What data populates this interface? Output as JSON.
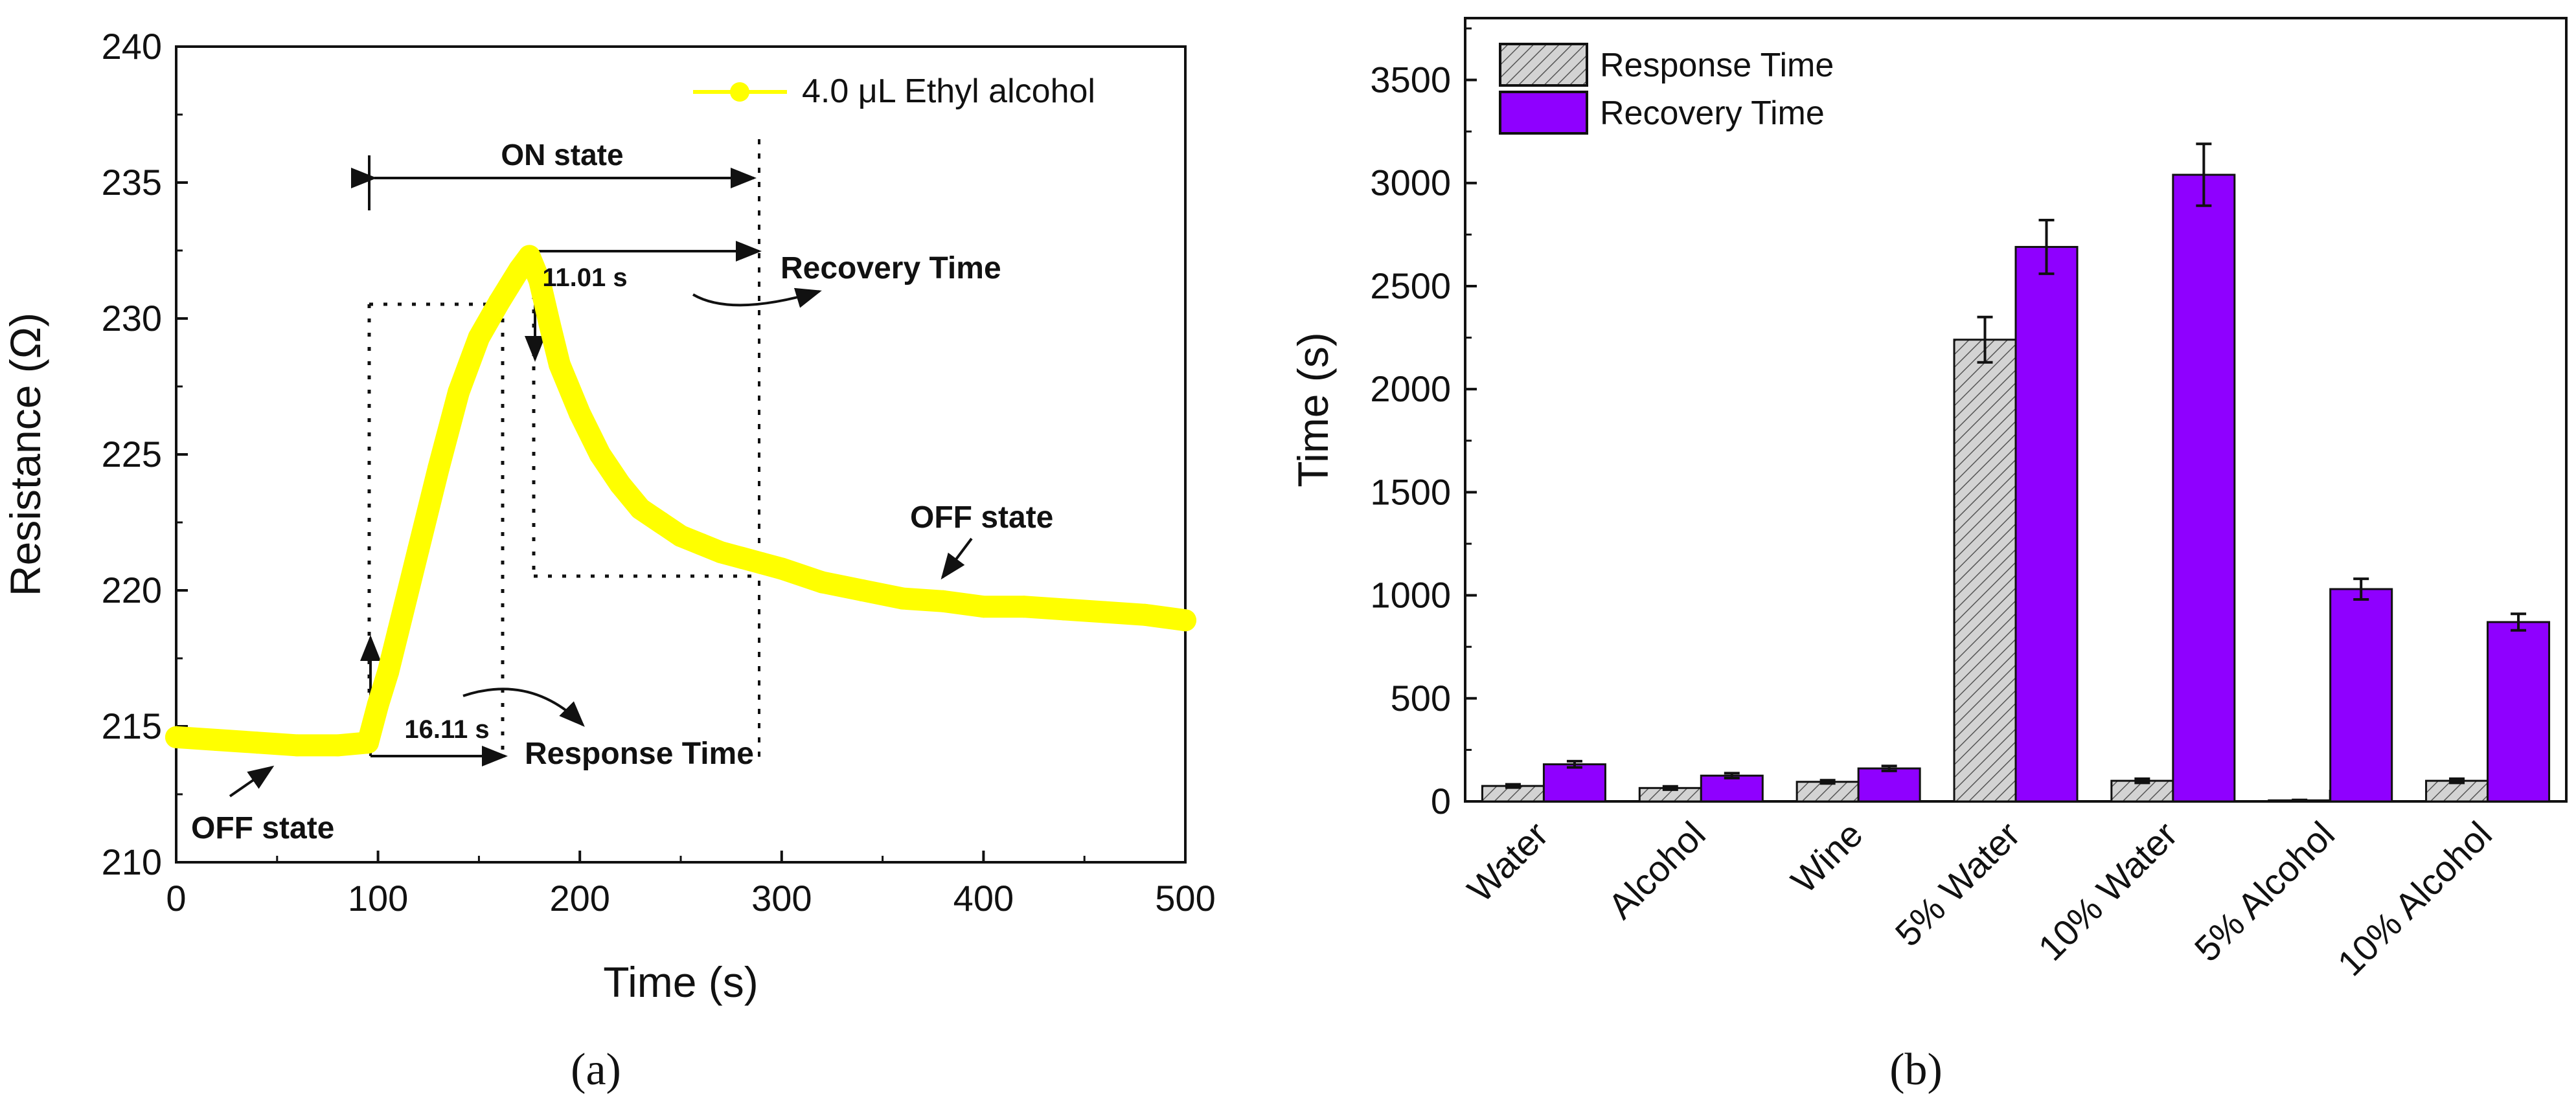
{
  "chart_data": [
    {
      "panel": "a",
      "type": "line",
      "xlabel": "Time (s)",
      "ylabel": "Resistance (Ω)",
      "xlim": [
        0,
        500
      ],
      "ylim": [
        210,
        240
      ],
      "xticks": [
        0,
        100,
        200,
        300,
        400,
        500
      ],
      "yticks": [
        210,
        215,
        220,
        225,
        230,
        235,
        240
      ],
      "grid": false,
      "legend": {
        "position": "top-right",
        "entries": [
          "4.0 μL Ethyl alcohol"
        ]
      },
      "series": [
        {
          "name": "4.0 μL Ethyl alcohol",
          "color": "#ffff00",
          "x": [
            0,
            20,
            40,
            60,
            80,
            95,
            100,
            105,
            110,
            120,
            130,
            140,
            150,
            160,
            165,
            170,
            175,
            180,
            185,
            190,
            200,
            210,
            220,
            230,
            240,
            250,
            260,
            270,
            280,
            290,
            300,
            320,
            340,
            360,
            380,
            400,
            420,
            440,
            460,
            480,
            500
          ],
          "y": [
            214.6,
            214.5,
            214.4,
            214.3,
            214.3,
            214.4,
            215.8,
            217.0,
            218.5,
            221.5,
            224.5,
            227.3,
            229.3,
            230.6,
            231.2,
            231.8,
            232.3,
            231.4,
            229.8,
            228.3,
            226.5,
            225.0,
            223.9,
            223.0,
            222.5,
            222.0,
            221.7,
            221.4,
            221.2,
            221.0,
            220.8,
            220.3,
            220.0,
            219.7,
            219.6,
            219.4,
            219.4,
            219.3,
            219.2,
            219.1,
            218.9
          ]
        }
      ],
      "annotations": {
        "on_state": "ON state",
        "off_state_left": "OFF state",
        "off_state_right": "OFF state",
        "response_time_value": "16.11 s",
        "response_time_label": "Response Time",
        "recovery_time_value": "11.01 s",
        "recovery_time_label": "Recovery Time"
      },
      "caption": "(a)"
    },
    {
      "panel": "b",
      "type": "bar",
      "xlabel": "",
      "ylabel": "Time (s)",
      "ylim": [
        0,
        3800
      ],
      "yticks": [
        0,
        500,
        1000,
        1500,
        2000,
        2500,
        3000,
        3500
      ],
      "grid": false,
      "legend": {
        "position": "top-left"
      },
      "categories": [
        "Water",
        "Alcohol",
        "Wine",
        "5% Water",
        "10% Water",
        "5% Alcohol",
        "10% Alcohol"
      ],
      "series": [
        {
          "name": "Response Time",
          "color": "#c8c8c8",
          "pattern": "diagonal-hatch",
          "values": [
            75,
            65,
            95,
            2240,
            100,
            5,
            100
          ],
          "errors": [
            8,
            8,
            8,
            110,
            10,
            2,
            10
          ]
        },
        {
          "name": "Recovery Time",
          "color": "#8f00ff",
          "values": [
            180,
            125,
            160,
            2690,
            3040,
            1030,
            870
          ],
          "errors": [
            15,
            12,
            12,
            130,
            150,
            50,
            40
          ]
        }
      ],
      "caption": "(b)"
    }
  ]
}
